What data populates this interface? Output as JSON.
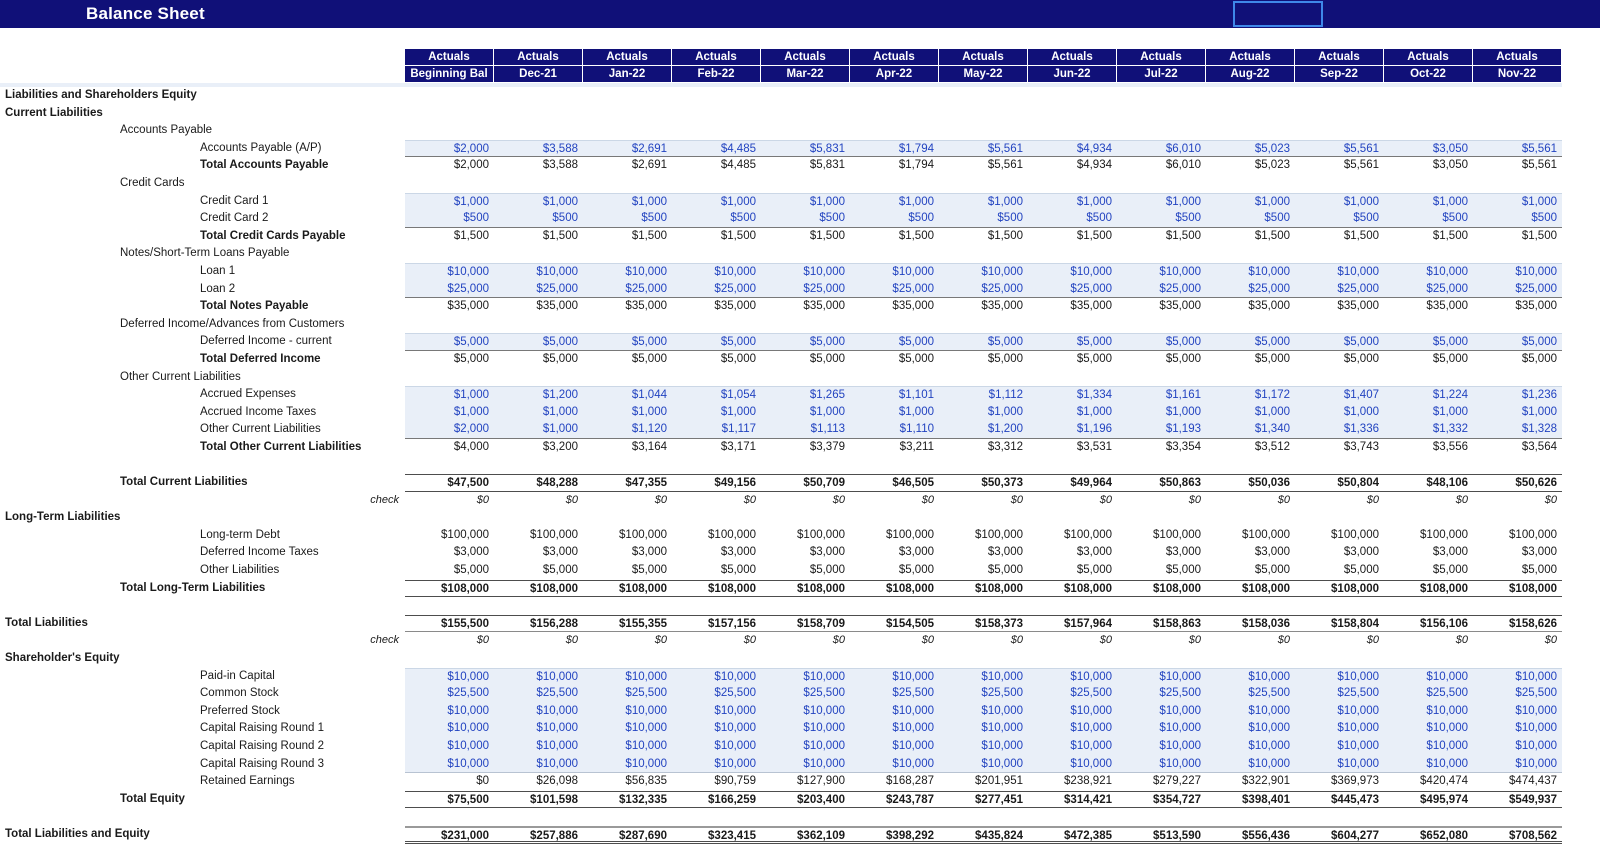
{
  "title": "Balance Sheet",
  "colors": {
    "header_navy": "#101078",
    "input_text_blue": "#2243C0",
    "input_band_bg": "#E9EFF8",
    "selection_border_blue": "#3F87E9"
  },
  "header": {
    "period_label": "Actuals",
    "columns": [
      "Beginning Bal",
      "Dec-21",
      "Jan-22",
      "Feb-22",
      "Mar-22",
      "Apr-22",
      "May-22",
      "Jun-22",
      "Jul-22",
      "Aug-22",
      "Sep-22",
      "Oct-22",
      "Nov-22"
    ]
  },
  "table": {
    "rows": [
      {
        "label": "Liabilities and Shareholders Equity",
        "type": "section"
      },
      {
        "label": "Current Liabilities",
        "type": "section"
      },
      {
        "label": "Accounts Payable",
        "type": "group"
      },
      {
        "label": "Accounts Payable (A/P)",
        "type": "input",
        "band": "single",
        "values": [
          "$2,000",
          "$3,588",
          "$2,691",
          "$4,485",
          "$5,831",
          "$1,794",
          "$5,561",
          "$4,934",
          "$6,010",
          "$5,023",
          "$5,561",
          "$3,050",
          "$5,561"
        ]
      },
      {
        "label": "Total Accounts Payable",
        "type": "subtotal",
        "values": [
          "$2,000",
          "$3,588",
          "$2,691",
          "$4,485",
          "$5,831",
          "$1,794",
          "$5,561",
          "$4,934",
          "$6,010",
          "$5,023",
          "$5,561",
          "$3,050",
          "$5,561"
        ]
      },
      {
        "label": "Credit Cards",
        "type": "group"
      },
      {
        "label": "Credit Card 1",
        "type": "input",
        "band": "start",
        "values": [
          "$1,000",
          "$1,000",
          "$1,000",
          "$1,000",
          "$1,000",
          "$1,000",
          "$1,000",
          "$1,000",
          "$1,000",
          "$1,000",
          "$1,000",
          "$1,000",
          "$1,000"
        ]
      },
      {
        "label": "Credit Card 2",
        "type": "input",
        "band": "end",
        "values": [
          "$500",
          "$500",
          "$500",
          "$500",
          "$500",
          "$500",
          "$500",
          "$500",
          "$500",
          "$500",
          "$500",
          "$500",
          "$500"
        ]
      },
      {
        "label": "Total Credit Cards Payable",
        "type": "subtotal",
        "values": [
          "$1,500",
          "$1,500",
          "$1,500",
          "$1,500",
          "$1,500",
          "$1,500",
          "$1,500",
          "$1,500",
          "$1,500",
          "$1,500",
          "$1,500",
          "$1,500",
          "$1,500"
        ]
      },
      {
        "label": "Notes/Short-Term Loans Payable",
        "type": "group"
      },
      {
        "label": "Loan 1",
        "type": "input",
        "band": "start",
        "values": [
          "$10,000",
          "$10,000",
          "$10,000",
          "$10,000",
          "$10,000",
          "$10,000",
          "$10,000",
          "$10,000",
          "$10,000",
          "$10,000",
          "$10,000",
          "$10,000",
          "$10,000"
        ]
      },
      {
        "label": "Loan 2",
        "type": "input",
        "band": "end",
        "values": [
          "$25,000",
          "$25,000",
          "$25,000",
          "$25,000",
          "$25,000",
          "$25,000",
          "$25,000",
          "$25,000",
          "$25,000",
          "$25,000",
          "$25,000",
          "$25,000",
          "$25,000"
        ]
      },
      {
        "label": "Total Notes Payable",
        "type": "subtotal",
        "values": [
          "$35,000",
          "$35,000",
          "$35,000",
          "$35,000",
          "$35,000",
          "$35,000",
          "$35,000",
          "$35,000",
          "$35,000",
          "$35,000",
          "$35,000",
          "$35,000",
          "$35,000"
        ]
      },
      {
        "label": "Deferred Income/Advances from Customers",
        "type": "group"
      },
      {
        "label": "Deferred Income - current",
        "type": "input",
        "band": "single",
        "values": [
          "$5,000",
          "$5,000",
          "$5,000",
          "$5,000",
          "$5,000",
          "$5,000",
          "$5,000",
          "$5,000",
          "$5,000",
          "$5,000",
          "$5,000",
          "$5,000",
          "$5,000"
        ]
      },
      {
        "label": "Total Deferred Income",
        "type": "subtotal",
        "values": [
          "$5,000",
          "$5,000",
          "$5,000",
          "$5,000",
          "$5,000",
          "$5,000",
          "$5,000",
          "$5,000",
          "$5,000",
          "$5,000",
          "$5,000",
          "$5,000",
          "$5,000"
        ]
      },
      {
        "label": "Other Current Liabilities",
        "type": "group"
      },
      {
        "label": "Accrued Expenses",
        "type": "input",
        "band": "start",
        "values": [
          "$1,000",
          "$1,200",
          "$1,044",
          "$1,054",
          "$1,265",
          "$1,101",
          "$1,112",
          "$1,334",
          "$1,161",
          "$1,172",
          "$1,407",
          "$1,224",
          "$1,236"
        ]
      },
      {
        "label": "Accrued Income Taxes",
        "type": "input",
        "band": "mid",
        "values": [
          "$1,000",
          "$1,000",
          "$1,000",
          "$1,000",
          "$1,000",
          "$1,000",
          "$1,000",
          "$1,000",
          "$1,000",
          "$1,000",
          "$1,000",
          "$1,000",
          "$1,000"
        ]
      },
      {
        "label": "Other Current Liabilities",
        "type": "input",
        "band": "end",
        "values": [
          "$2,000",
          "$1,000",
          "$1,120",
          "$1,117",
          "$1,113",
          "$1,110",
          "$1,200",
          "$1,196",
          "$1,193",
          "$1,340",
          "$1,336",
          "$1,332",
          "$1,328"
        ]
      },
      {
        "label": "Total Other Current Liabilities",
        "type": "subtotal",
        "values": [
          "$4,000",
          "$3,200",
          "$3,164",
          "$3,171",
          "$3,379",
          "$3,211",
          "$3,312",
          "$3,531",
          "$3,354",
          "$3,512",
          "$3,743",
          "$3,556",
          "$3,564"
        ]
      },
      {
        "label": "",
        "type": "blank"
      },
      {
        "label": "Total Current Liabilities",
        "type": "total1",
        "values": [
          "$47,500",
          "$48,288",
          "$47,355",
          "$49,156",
          "$50,709",
          "$46,505",
          "$50,373",
          "$49,964",
          "$50,863",
          "$50,036",
          "$50,804",
          "$48,106",
          "$50,626"
        ]
      },
      {
        "label": "check",
        "type": "check",
        "values": [
          "$0",
          "$0",
          "$0",
          "$0",
          "$0",
          "$0",
          "$0",
          "$0",
          "$0",
          "$0",
          "$0",
          "$0",
          "$0"
        ]
      },
      {
        "label": "Long-Term Liabilities",
        "type": "section"
      },
      {
        "label": "Long-term Debt",
        "type": "item",
        "values": [
          "$100,000",
          "$100,000",
          "$100,000",
          "$100,000",
          "$100,000",
          "$100,000",
          "$100,000",
          "$100,000",
          "$100,000",
          "$100,000",
          "$100,000",
          "$100,000",
          "$100,000"
        ]
      },
      {
        "label": "Deferred Income Taxes",
        "type": "item",
        "values": [
          "$3,000",
          "$3,000",
          "$3,000",
          "$3,000",
          "$3,000",
          "$3,000",
          "$3,000",
          "$3,000",
          "$3,000",
          "$3,000",
          "$3,000",
          "$3,000",
          "$3,000"
        ]
      },
      {
        "label": "Other Liabilities",
        "type": "item",
        "values": [
          "$5,000",
          "$5,000",
          "$5,000",
          "$5,000",
          "$5,000",
          "$5,000",
          "$5,000",
          "$5,000",
          "$5,000",
          "$5,000",
          "$5,000",
          "$5,000",
          "$5,000"
        ]
      },
      {
        "label": "Total Long-Term Liabilities",
        "type": "total1",
        "values": [
          "$108,000",
          "$108,000",
          "$108,000",
          "$108,000",
          "$108,000",
          "$108,000",
          "$108,000",
          "$108,000",
          "$108,000",
          "$108,000",
          "$108,000",
          "$108,000",
          "$108,000"
        ]
      },
      {
        "label": "",
        "type": "blank"
      },
      {
        "label": "Total Liabilities",
        "type": "total0",
        "values": [
          "$155,500",
          "$156,288",
          "$155,355",
          "$157,156",
          "$158,709",
          "$154,505",
          "$158,373",
          "$157,964",
          "$158,863",
          "$158,036",
          "$158,804",
          "$156,106",
          "$158,626"
        ]
      },
      {
        "label": "check",
        "type": "check",
        "values": [
          "$0",
          "$0",
          "$0",
          "$0",
          "$0",
          "$0",
          "$0",
          "$0",
          "$0",
          "$0",
          "$0",
          "$0",
          "$0"
        ]
      },
      {
        "label": "Shareholder's Equity",
        "type": "section"
      },
      {
        "label": "Paid-in Capital",
        "type": "input",
        "band": "start",
        "values": [
          "$10,000",
          "$10,000",
          "$10,000",
          "$10,000",
          "$10,000",
          "$10,000",
          "$10,000",
          "$10,000",
          "$10,000",
          "$10,000",
          "$10,000",
          "$10,000",
          "$10,000"
        ]
      },
      {
        "label": "Common Stock",
        "type": "input",
        "band": "mid",
        "values": [
          "$25,500",
          "$25,500",
          "$25,500",
          "$25,500",
          "$25,500",
          "$25,500",
          "$25,500",
          "$25,500",
          "$25,500",
          "$25,500",
          "$25,500",
          "$25,500",
          "$25,500"
        ]
      },
      {
        "label": "Preferred Stock",
        "type": "input",
        "band": "mid",
        "values": [
          "$10,000",
          "$10,000",
          "$10,000",
          "$10,000",
          "$10,000",
          "$10,000",
          "$10,000",
          "$10,000",
          "$10,000",
          "$10,000",
          "$10,000",
          "$10,000",
          "$10,000"
        ]
      },
      {
        "label": "Capital Raising Round 1",
        "type": "input",
        "band": "mid",
        "values": [
          "$10,000",
          "$10,000",
          "$10,000",
          "$10,000",
          "$10,000",
          "$10,000",
          "$10,000",
          "$10,000",
          "$10,000",
          "$10,000",
          "$10,000",
          "$10,000",
          "$10,000"
        ]
      },
      {
        "label": "Capital Raising Round 2",
        "type": "input",
        "band": "mid",
        "values": [
          "$10,000",
          "$10,000",
          "$10,000",
          "$10,000",
          "$10,000",
          "$10,000",
          "$10,000",
          "$10,000",
          "$10,000",
          "$10,000",
          "$10,000",
          "$10,000",
          "$10,000"
        ]
      },
      {
        "label": "Capital Raising Round 3",
        "type": "input",
        "band": "end_light",
        "values": [
          "$10,000",
          "$10,000",
          "$10,000",
          "$10,000",
          "$10,000",
          "$10,000",
          "$10,000",
          "$10,000",
          "$10,000",
          "$10,000",
          "$10,000",
          "$10,000",
          "$10,000"
        ]
      },
      {
        "label": "Retained Earnings",
        "type": "item",
        "values": [
          "$0",
          "$26,098",
          "$56,835",
          "$90,759",
          "$127,900",
          "$168,287",
          "$201,951",
          "$238,921",
          "$279,227",
          "$322,901",
          "$369,973",
          "$420,474",
          "$474,437"
        ]
      },
      {
        "label": "Total Equity",
        "type": "total1",
        "values": [
          "$75,500",
          "$101,598",
          "$132,335",
          "$166,259",
          "$203,400",
          "$243,787",
          "$277,451",
          "$314,421",
          "$354,727",
          "$398,401",
          "$445,473",
          "$495,974",
          "$549,937"
        ]
      },
      {
        "label": "",
        "type": "blank"
      },
      {
        "label": "Total Liabilities and Equity",
        "type": "grand",
        "values": [
          "$231,000",
          "$257,886",
          "$287,690",
          "$323,415",
          "$362,109",
          "$398,292",
          "$435,824",
          "$472,385",
          "$513,590",
          "$556,436",
          "$604,277",
          "$652,080",
          "$708,562"
        ]
      }
    ]
  }
}
